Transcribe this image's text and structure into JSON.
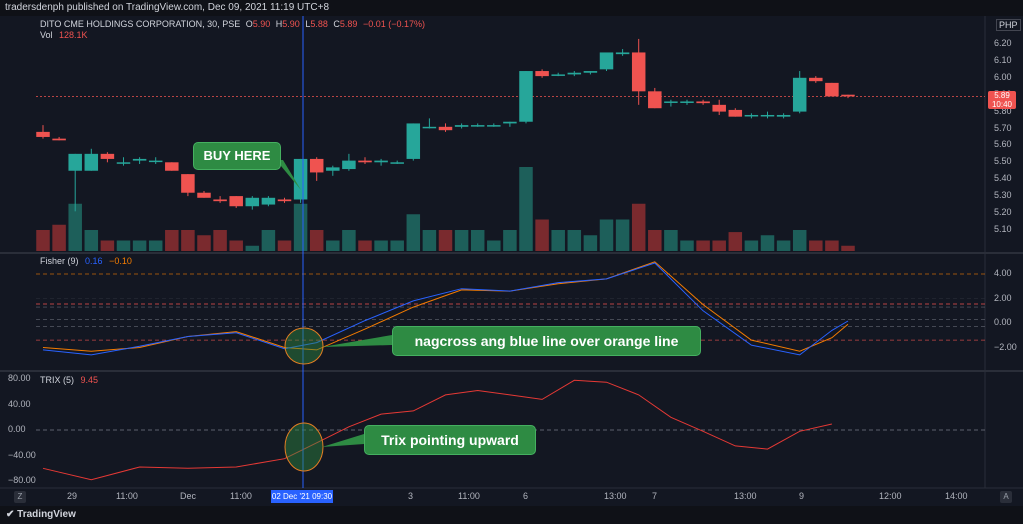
{
  "publish_header": "tradersdenph published on TradingView.com, Dec 09, 2021 11:19 UTC+8",
  "legend": {
    "symbol": "DITO CME HOLDINGS CORPORATION, 30, PSE",
    "o_label": "O",
    "o_value": "5.90",
    "h_label": "H",
    "h_value": "5.90",
    "l_label": "L",
    "l_value": "5.88",
    "c_label": "C",
    "c_value": "5.89",
    "change": "−0.01 (−0.17%)",
    "vol_label": "Vol",
    "vol_value": "128.1K"
  },
  "currency": "PHP",
  "price_tag": {
    "price": "5.89",
    "countdown": "10:40"
  },
  "price_axis": [
    "6.20",
    "6.10",
    "6.00",
    "5.90",
    "5.80",
    "5.70",
    "5.60",
    "5.50",
    "5.40",
    "5.30",
    "5.20",
    "5.10"
  ],
  "fisher": {
    "title": "Fisher (9)",
    "v1": "0.16",
    "v2": "−0.10",
    "axis": [
      "4.00",
      "2.00",
      "0.00",
      "−2.00"
    ]
  },
  "trix": {
    "title": "TRIX (5)",
    "value": "9.45",
    "axis": [
      "80.00",
      "40.00",
      "0.00",
      "−40.00",
      "−80.00"
    ]
  },
  "time_axis": [
    "29",
    "11:00",
    "Dec",
    "11:00",
    "3",
    "11:00",
    "6",
    "13:00",
    "7",
    "13:00",
    "9",
    "12:00",
    "14:00"
  ],
  "crosshair_date": "02 Dec '21   09:30",
  "callouts": {
    "buy": "BUY HERE",
    "fisher": "nagcross ang blue line over orange line",
    "trix": "Trix pointing upward"
  },
  "brand": "TradingView",
  "corner": {
    "left": "Z",
    "right": "A"
  },
  "colors": {
    "up": "#26a69a",
    "down": "#ef5350",
    "fisher_fast": "#2962ff",
    "fisher_slow": "#f57c00",
    "trix": "#e53935",
    "callout": "#2e8b43",
    "crosshair": "#2962ff"
  },
  "chart_data": {
    "type": "candlestick",
    "ylim": [
      5.05,
      6.27
    ],
    "candles": [
      [
        5.68,
        5.72,
        5.64,
        5.65
      ],
      [
        5.64,
        5.65,
        5.63,
        5.63
      ],
      [
        5.45,
        5.55,
        5.21,
        5.55
      ],
      [
        5.45,
        5.58,
        5.45,
        5.55
      ],
      [
        5.55,
        5.56,
        5.5,
        5.52
      ],
      [
        5.5,
        5.53,
        5.48,
        5.5
      ],
      [
        5.51,
        5.53,
        5.49,
        5.52
      ],
      [
        5.51,
        5.53,
        5.49,
        5.51
      ],
      [
        5.5,
        5.5,
        5.45,
        5.45
      ],
      [
        5.43,
        5.43,
        5.3,
        5.32
      ],
      [
        5.32,
        5.33,
        5.29,
        5.29
      ],
      [
        5.28,
        5.3,
        5.26,
        5.27
      ],
      [
        5.3,
        5.3,
        5.23,
        5.24
      ],
      [
        5.24,
        5.3,
        5.22,
        5.29
      ],
      [
        5.25,
        5.3,
        5.24,
        5.29
      ],
      [
        5.28,
        5.29,
        5.26,
        5.27
      ],
      [
        5.28,
        5.52,
        5.26,
        5.52
      ],
      [
        5.52,
        5.53,
        5.39,
        5.44
      ],
      [
        5.45,
        5.48,
        5.42,
        5.47
      ],
      [
        5.46,
        5.55,
        5.45,
        5.51
      ],
      [
        5.51,
        5.53,
        5.49,
        5.5
      ],
      [
        5.5,
        5.52,
        5.48,
        5.51
      ],
      [
        5.5,
        5.51,
        5.49,
        5.5
      ],
      [
        5.52,
        5.73,
        5.51,
        5.73
      ],
      [
        5.71,
        5.76,
        5.7,
        5.71
      ],
      [
        5.71,
        5.73,
        5.68,
        5.69
      ],
      [
        5.71,
        5.73,
        5.7,
        5.72
      ],
      [
        5.72,
        5.73,
        5.71,
        5.72
      ],
      [
        5.72,
        5.73,
        5.71,
        5.72
      ],
      [
        5.73,
        5.74,
        5.71,
        5.74
      ],
      [
        5.74,
        6.04,
        5.73,
        6.04
      ],
      [
        6.04,
        6.05,
        6.0,
        6.01
      ],
      [
        6.02,
        6.03,
        6.01,
        6.02
      ],
      [
        6.02,
        6.04,
        6.01,
        6.03
      ],
      [
        6.03,
        6.04,
        6.02,
        6.04
      ],
      [
        6.05,
        6.15,
        6.04,
        6.15
      ],
      [
        6.14,
        6.17,
        6.13,
        6.15
      ],
      [
        6.15,
        6.23,
        5.84,
        5.92
      ],
      [
        5.92,
        5.94,
        5.82,
        5.82
      ],
      [
        5.86,
        5.87,
        5.83,
        5.86
      ],
      [
        5.86,
        5.87,
        5.84,
        5.86
      ],
      [
        5.86,
        5.87,
        5.84,
        5.85
      ],
      [
        5.84,
        5.87,
        5.78,
        5.8
      ],
      [
        5.81,
        5.82,
        5.77,
        5.77
      ],
      [
        5.78,
        5.79,
        5.76,
        5.78
      ],
      [
        5.78,
        5.8,
        5.76,
        5.78
      ],
      [
        5.77,
        5.79,
        5.76,
        5.78
      ],
      [
        5.8,
        6.04,
        5.79,
        6.0
      ],
      [
        6.0,
        6.01,
        5.97,
        5.98
      ],
      [
        5.97,
        5.97,
        5.89,
        5.89
      ],
      [
        5.9,
        5.9,
        5.88,
        5.89
      ]
    ],
    "volume": [
      2,
      2.5,
      4.5,
      2,
      1,
      1,
      1,
      1,
      2,
      2,
      1.5,
      2,
      1,
      0.5,
      2,
      1,
      4.5,
      2,
      1,
      2,
      1,
      1,
      1,
      3.5,
      2,
      2,
      2,
      2,
      1,
      2,
      8,
      3,
      2,
      2,
      1.5,
      3,
      3,
      4.5,
      2,
      2,
      1,
      1,
      1,
      1.8,
      1,
      1.5,
      1,
      2,
      1,
      1,
      0.5
    ],
    "fisher_fast": [
      [
        0,
        -2.2
      ],
      [
        3,
        -2.6
      ],
      [
        6,
        -1.9
      ],
      [
        9,
        -1.1
      ],
      [
        12,
        -0.8
      ],
      [
        15,
        -2.1
      ],
      [
        17,
        -1.6
      ],
      [
        20,
        0.2
      ],
      [
        23,
        1.8
      ],
      [
        26,
        2.8
      ],
      [
        29,
        2.6
      ],
      [
        32,
        3.3
      ],
      [
        35,
        3.6
      ],
      [
        38,
        4.9
      ],
      [
        41,
        1.0
      ],
      [
        44,
        -1.8
      ],
      [
        47,
        -2.6
      ],
      [
        49,
        -0.6
      ],
      [
        50,
        0.16
      ]
    ],
    "fisher_slow": [
      [
        0,
        -2.0
      ],
      [
        3,
        -2.3
      ],
      [
        6,
        -2.0
      ],
      [
        9,
        -1.1
      ],
      [
        12,
        -0.7
      ],
      [
        15,
        -2.0
      ],
      [
        17,
        -2.2
      ],
      [
        20,
        -0.5
      ],
      [
        23,
        1.3
      ],
      [
        26,
        2.7
      ],
      [
        29,
        2.6
      ],
      [
        32,
        3.2
      ],
      [
        35,
        3.6
      ],
      [
        38,
        5.0
      ],
      [
        41,
        1.5
      ],
      [
        44,
        -1.4
      ],
      [
        47,
        -2.3
      ],
      [
        49,
        -1.2
      ],
      [
        50,
        -0.1
      ]
    ],
    "trix": [
      [
        0,
        -60
      ],
      [
        3,
        -78
      ],
      [
        6,
        -58
      ],
      [
        9,
        -60
      ],
      [
        12,
        -58
      ],
      [
        15,
        -45
      ],
      [
        17,
        -20
      ],
      [
        19,
        5
      ],
      [
        21,
        25
      ],
      [
        23,
        30
      ],
      [
        25,
        55
      ],
      [
        27,
        62
      ],
      [
        29,
        55
      ],
      [
        31,
        48
      ],
      [
        33,
        78
      ],
      [
        35,
        75
      ],
      [
        37,
        55
      ],
      [
        39,
        20
      ],
      [
        41,
        -2
      ],
      [
        43,
        -25
      ],
      [
        45,
        -30
      ],
      [
        47,
        -2
      ],
      [
        49,
        9.45
      ]
    ]
  }
}
